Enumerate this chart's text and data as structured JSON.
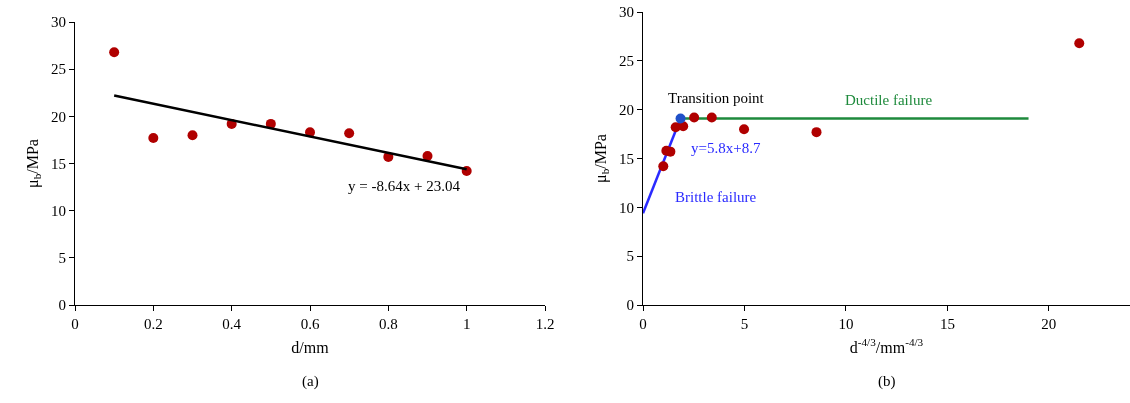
{
  "chart_data": [
    {
      "type": "scatter",
      "xlabel": "d/mm",
      "ylabel": "μ$_{b}$/MPa",
      "x": [
        0.1,
        0.2,
        0.3,
        0.4,
        0.5,
        0.6,
        0.7,
        0.8,
        0.9,
        1.0
      ],
      "series": [
        {
          "color": "#b00000",
          "marker": "circle",
          "values": [
            26.8,
            17.7,
            18.0,
            19.2,
            19.2,
            18.3,
            18.2,
            15.7,
            15.8,
            14.2
          ]
        },
        {
          "type": "line",
          "color": "#000000",
          "marker": "none",
          "x": [
            0.1,
            1.0
          ],
          "values": [
            22.2,
            14.4
          ]
        }
      ],
      "xlim": [
        0,
        1.2
      ],
      "xticks": [
        0,
        0.2,
        0.4,
        0.6,
        0.8,
        1,
        1.2
      ],
      "ylim": [
        0,
        30
      ],
      "yticks": [
        0,
        5,
        10,
        15,
        20,
        25,
        30
      ],
      "grid": false,
      "annotations": [
        "y = -8.64x + 23.04",
        "(a)"
      ]
    },
    {
      "type": "scatter",
      "xlabel": "d$^{-4/3}$/mm$^{-4/3}$",
      "ylabel": "μ$_{b}$/MPa",
      "x": [
        21.5,
        8.55,
        4.98,
        3.39,
        2.52,
        1.98,
        1.61,
        1.35,
        1.15,
        1.0
      ],
      "series": [
        {
          "type": "line",
          "color": "#2a2aff",
          "marker": "none",
          "x": [
            0,
            1.85
          ],
          "values": [
            9.4,
            19.1
          ]
        },
        {
          "type": "line",
          "color": "#1e8a3c",
          "marker": "none",
          "x": [
            1.85,
            19
          ],
          "values": [
            19.1,
            19.1
          ]
        },
        {
          "color": "#b00000",
          "marker": "circle",
          "values": [
            26.8,
            17.7,
            18.0,
            19.2,
            19.2,
            18.3,
            18.2,
            15.7,
            15.8,
            14.2
          ]
        },
        {
          "color": "#2050c8",
          "marker": "circle",
          "x": [
            1.85
          ],
          "values": [
            19.1
          ]
        }
      ],
      "xlim": [
        0,
        24
      ],
      "xticks": [
        0,
        5,
        10,
        15,
        20
      ],
      "ylim": [
        0,
        30
      ],
      "yticks": [
        0,
        5,
        10,
        15,
        20,
        25,
        30
      ],
      "grid": false,
      "annotations": [
        "Transition point",
        "Ductile failure",
        "y=5.8x+8.7",
        "Brittle failure",
        "(b)"
      ]
    }
  ]
}
